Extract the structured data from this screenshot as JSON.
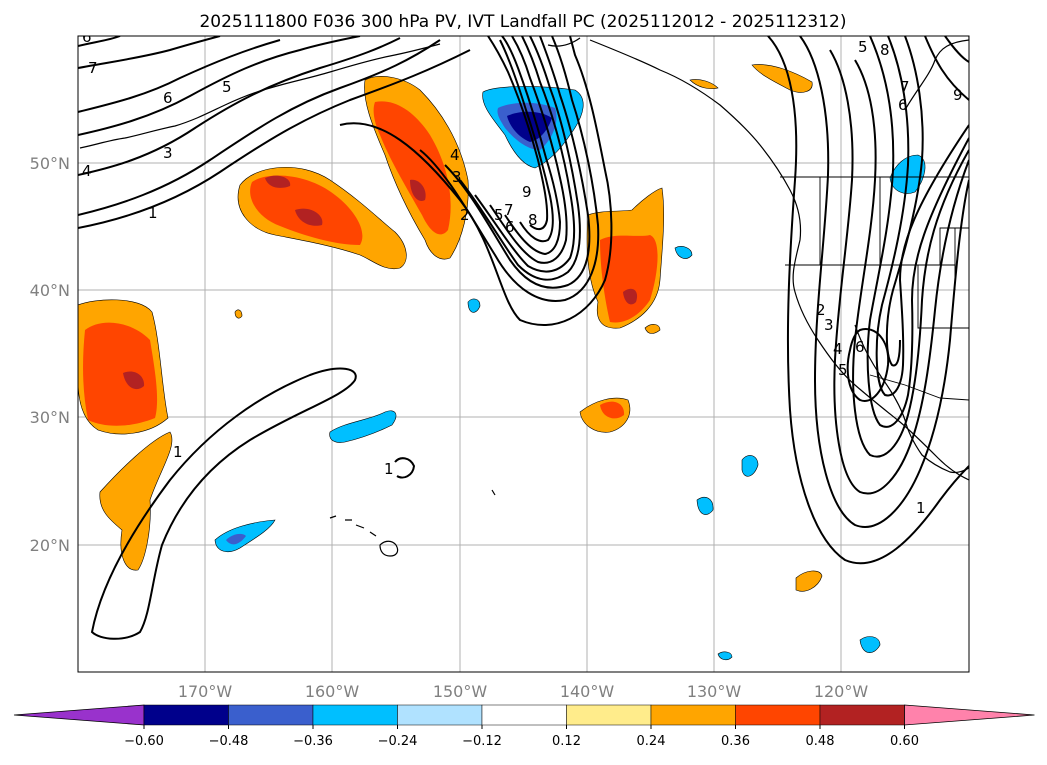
{
  "title": "2025111800 F036 300 hPa PV, IVT Landfall PC (2025112012 - 2025112312)",
  "lon_labels": [
    "170°W",
    "160°W",
    "150°W",
    "140°W",
    "130°W",
    "120°W"
  ],
  "lat_labels": [
    "50°N",
    "40°N",
    "30°N",
    "20°N"
  ],
  "colorbar": {
    "colors": [
      "#9932cc",
      "#00008b",
      "#3a5fcd",
      "#00bfff",
      "#b0e2ff",
      "#ffffff",
      "#ffec8b",
      "#ffa500",
      "#ff4500",
      "#b22222",
      "#ff82ab"
    ],
    "tick_labels": [
      "−0.60",
      "−0.48",
      "−0.36",
      "−0.24",
      "−0.12",
      "0.12",
      "0.24",
      "0.36",
      "0.48",
      "0.60"
    ]
  },
  "contour_labels": [
    "7",
    "6",
    "5",
    "4",
    "3",
    "1",
    "4",
    "3",
    "2",
    "5",
    "7",
    "8",
    "9",
    "6",
    "5",
    "8",
    "7",
    "6",
    "9",
    "2",
    "3",
    "4",
    "5",
    "6",
    "1",
    "1",
    "1",
    "6"
  ]
}
